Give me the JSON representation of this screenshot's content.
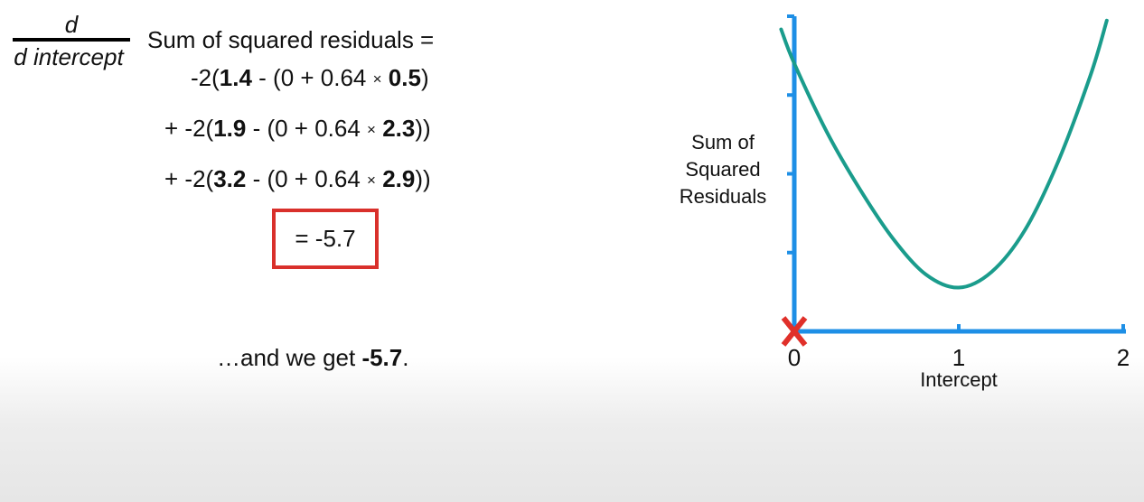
{
  "equation": {
    "fraction_numerator": "d",
    "fraction_denominator": "d intercept",
    "heading": "Sum of squared residuals =",
    "terms": [
      {
        "prefix": "-2(",
        "observed": "1.4",
        "middle": " - (0 + 0.64 ",
        "times": "×",
        "x": "0.5",
        "suffix": ")"
      },
      {
        "prefix": "+ -2(",
        "observed": "1.9",
        "middle": " - (0 + 0.64 ",
        "times": "×",
        "x": "2.3",
        "suffix": "))"
      },
      {
        "prefix": "+ -2(",
        "observed": "3.2",
        "middle": " - (0 + 0.64 ",
        "times": "×",
        "x": "2.9",
        "suffix": "))"
      }
    ],
    "result": "= -5.7"
  },
  "caption": {
    "text": "…and we get ",
    "value": "-5.7",
    "end": "."
  },
  "colors": {
    "axis": "#1e8fe6",
    "curve": "#1a9c8c",
    "marker": "#e0302a",
    "result_box": "#d9302b"
  },
  "chart_data": {
    "type": "line",
    "xlabel": "Intercept",
    "ylabel_lines": [
      "Sum of",
      "Squared",
      "Residuals"
    ],
    "xlim": [
      0,
      2
    ],
    "x_ticks": [
      "0",
      "1",
      "2"
    ],
    "y_tick_count": 4,
    "y_tick_labels_shown": false,
    "series": [
      {
        "x": [
          -0.08,
          0.0,
          0.2,
          0.4,
          0.6,
          0.8,
          1.0,
          1.2,
          1.4,
          1.6,
          1.8,
          1.9
        ],
        "y": [
          3.45,
          3.06,
          2.27,
          1.62,
          1.06,
          0.65,
          0.5,
          0.68,
          1.15,
          1.92,
          2.92,
          3.55
        ]
      }
    ],
    "ylim": [
      0,
      3.6
    ],
    "marker": {
      "x": 0,
      "y": 0,
      "symbol": "X"
    }
  }
}
